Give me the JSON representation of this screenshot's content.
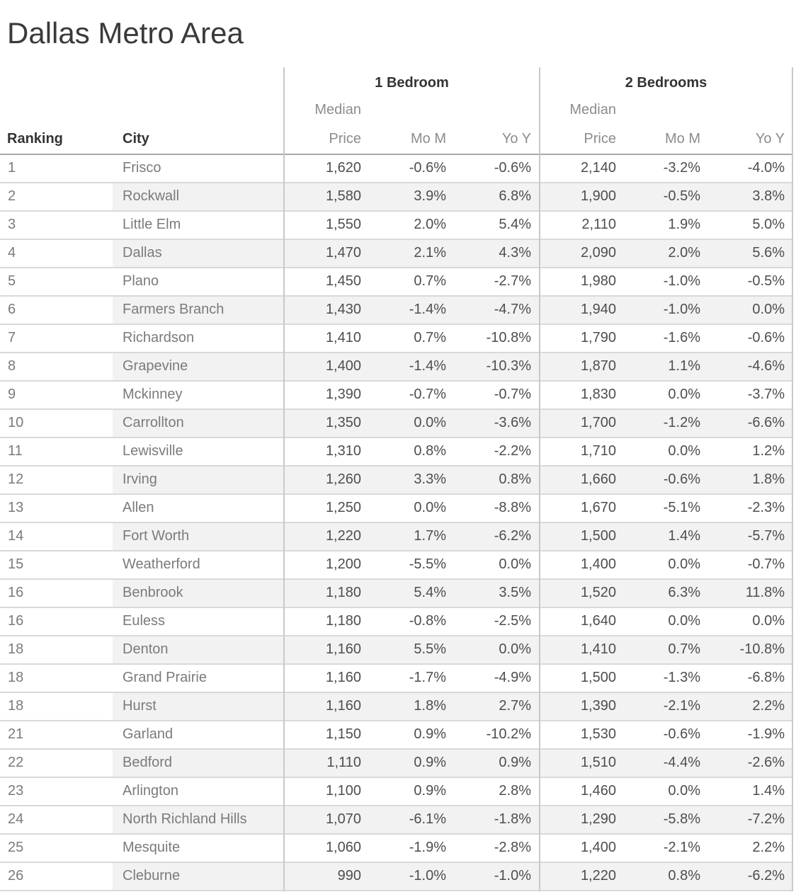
{
  "title": "Dallas Metro Area",
  "header": {
    "ranking": "Ranking",
    "city": "City",
    "group_1br": "1 Bedroom",
    "group_2br": "2 Bedrooms",
    "median_price": "Median Price",
    "mom": "Mo M",
    "yoy": "Yo Y"
  },
  "colors": {
    "title": "#3a3a3a",
    "header_dark": "#333333",
    "header_light": "#8c8c8c",
    "text_dark": "#4e4e4e",
    "text_light": "#7b7b7b",
    "band": "#f2f2f2",
    "row_line": "#d9d9d9",
    "header_line": "#a9a9a9",
    "divider": "#c9c9c9"
  },
  "chart_data": {
    "type": "table",
    "title": "Dallas Metro Area",
    "column_groups": [
      {
        "label": "1 Bedroom",
        "columns": [
          "Median Price",
          "Mo M",
          "Yo Y"
        ]
      },
      {
        "label": "2 Bedrooms",
        "columns": [
          "Median Price",
          "Mo M",
          "Yo Y"
        ]
      }
    ],
    "columns": [
      "Ranking",
      "City",
      "1BR Median Price",
      "1BR Mo M",
      "1BR Yo Y",
      "2BR Median Price",
      "2BR Mo M",
      "2BR Yo Y"
    ],
    "rows": [
      {
        "ranking": "1",
        "city": "Frisco",
        "br1_price": "1,620",
        "br1_mom": "-0.6%",
        "br1_yoy": "-0.6%",
        "br2_price": "2,140",
        "br2_mom": "-3.2%",
        "br2_yoy": "-4.0%"
      },
      {
        "ranking": "2",
        "city": "Rockwall",
        "br1_price": "1,580",
        "br1_mom": "3.9%",
        "br1_yoy": "6.8%",
        "br2_price": "1,900",
        "br2_mom": "-0.5%",
        "br2_yoy": "3.8%"
      },
      {
        "ranking": "3",
        "city": "Little Elm",
        "br1_price": "1,550",
        "br1_mom": "2.0%",
        "br1_yoy": "5.4%",
        "br2_price": "2,110",
        "br2_mom": "1.9%",
        "br2_yoy": "5.0%"
      },
      {
        "ranking": "4",
        "city": "Dallas",
        "br1_price": "1,470",
        "br1_mom": "2.1%",
        "br1_yoy": "4.3%",
        "br2_price": "2,090",
        "br2_mom": "2.0%",
        "br2_yoy": "5.6%"
      },
      {
        "ranking": "5",
        "city": "Plano",
        "br1_price": "1,450",
        "br1_mom": "0.7%",
        "br1_yoy": "-2.7%",
        "br2_price": "1,980",
        "br2_mom": "-1.0%",
        "br2_yoy": "-0.5%"
      },
      {
        "ranking": "6",
        "city": "Farmers Branch",
        "br1_price": "1,430",
        "br1_mom": "-1.4%",
        "br1_yoy": "-4.7%",
        "br2_price": "1,940",
        "br2_mom": "-1.0%",
        "br2_yoy": "0.0%"
      },
      {
        "ranking": "7",
        "city": "Richardson",
        "br1_price": "1,410",
        "br1_mom": "0.7%",
        "br1_yoy": "-10.8%",
        "br2_price": "1,790",
        "br2_mom": "-1.6%",
        "br2_yoy": "-0.6%"
      },
      {
        "ranking": "8",
        "city": "Grapevine",
        "br1_price": "1,400",
        "br1_mom": "-1.4%",
        "br1_yoy": "-10.3%",
        "br2_price": "1,870",
        "br2_mom": "1.1%",
        "br2_yoy": "-4.6%"
      },
      {
        "ranking": "9",
        "city": "Mckinney",
        "br1_price": "1,390",
        "br1_mom": "-0.7%",
        "br1_yoy": "-0.7%",
        "br2_price": "1,830",
        "br2_mom": "0.0%",
        "br2_yoy": "-3.7%"
      },
      {
        "ranking": "10",
        "city": "Carrollton",
        "br1_price": "1,350",
        "br1_mom": "0.0%",
        "br1_yoy": "-3.6%",
        "br2_price": "1,700",
        "br2_mom": "-1.2%",
        "br2_yoy": "-6.6%"
      },
      {
        "ranking": "11",
        "city": "Lewisville",
        "br1_price": "1,310",
        "br1_mom": "0.8%",
        "br1_yoy": "-2.2%",
        "br2_price": "1,710",
        "br2_mom": "0.0%",
        "br2_yoy": "1.2%"
      },
      {
        "ranking": "12",
        "city": "Irving",
        "br1_price": "1,260",
        "br1_mom": "3.3%",
        "br1_yoy": "0.8%",
        "br2_price": "1,660",
        "br2_mom": "-0.6%",
        "br2_yoy": "1.8%"
      },
      {
        "ranking": "13",
        "city": "Allen",
        "br1_price": "1,250",
        "br1_mom": "0.0%",
        "br1_yoy": "-8.8%",
        "br2_price": "1,670",
        "br2_mom": "-5.1%",
        "br2_yoy": "-2.3%"
      },
      {
        "ranking": "14",
        "city": "Fort Worth",
        "br1_price": "1,220",
        "br1_mom": "1.7%",
        "br1_yoy": "-6.2%",
        "br2_price": "1,500",
        "br2_mom": "1.4%",
        "br2_yoy": "-5.7%"
      },
      {
        "ranking": "15",
        "city": "Weatherford",
        "br1_price": "1,200",
        "br1_mom": "-5.5%",
        "br1_yoy": "0.0%",
        "br2_price": "1,400",
        "br2_mom": "0.0%",
        "br2_yoy": "-0.7%"
      },
      {
        "ranking": "16",
        "city": "Benbrook",
        "br1_price": "1,180",
        "br1_mom": "5.4%",
        "br1_yoy": "3.5%",
        "br2_price": "1,520",
        "br2_mom": "6.3%",
        "br2_yoy": "11.8%"
      },
      {
        "ranking": "16",
        "city": "Euless",
        "br1_price": "1,180",
        "br1_mom": "-0.8%",
        "br1_yoy": "-2.5%",
        "br2_price": "1,640",
        "br2_mom": "0.0%",
        "br2_yoy": "0.0%"
      },
      {
        "ranking": "18",
        "city": "Denton",
        "br1_price": "1,160",
        "br1_mom": "5.5%",
        "br1_yoy": "0.0%",
        "br2_price": "1,410",
        "br2_mom": "0.7%",
        "br2_yoy": "-10.8%"
      },
      {
        "ranking": "18",
        "city": "Grand Prairie",
        "br1_price": "1,160",
        "br1_mom": "-1.7%",
        "br1_yoy": "-4.9%",
        "br2_price": "1,500",
        "br2_mom": "-1.3%",
        "br2_yoy": "-6.8%"
      },
      {
        "ranking": "18",
        "city": "Hurst",
        "br1_price": "1,160",
        "br1_mom": "1.8%",
        "br1_yoy": "2.7%",
        "br2_price": "1,390",
        "br2_mom": "-2.1%",
        "br2_yoy": "2.2%"
      },
      {
        "ranking": "21",
        "city": "Garland",
        "br1_price": "1,150",
        "br1_mom": "0.9%",
        "br1_yoy": "-10.2%",
        "br2_price": "1,530",
        "br2_mom": "-0.6%",
        "br2_yoy": "-1.9%"
      },
      {
        "ranking": "22",
        "city": "Bedford",
        "br1_price": "1,110",
        "br1_mom": "0.9%",
        "br1_yoy": "0.9%",
        "br2_price": "1,510",
        "br2_mom": "-4.4%",
        "br2_yoy": "-2.6%"
      },
      {
        "ranking": "23",
        "city": "Arlington",
        "br1_price": "1,100",
        "br1_mom": "0.9%",
        "br1_yoy": "2.8%",
        "br2_price": "1,460",
        "br2_mom": "0.0%",
        "br2_yoy": "1.4%"
      },
      {
        "ranking": "24",
        "city": "North Richland Hills",
        "br1_price": "1,070",
        "br1_mom": "-6.1%",
        "br1_yoy": "-1.8%",
        "br2_price": "1,290",
        "br2_mom": "-5.8%",
        "br2_yoy": "-7.2%"
      },
      {
        "ranking": "25",
        "city": "Mesquite",
        "br1_price": "1,060",
        "br1_mom": "-1.9%",
        "br1_yoy": "-2.8%",
        "br2_price": "1,400",
        "br2_mom": "-2.1%",
        "br2_yoy": "2.2%"
      },
      {
        "ranking": "26",
        "city": "Cleburne",
        "br1_price": "990",
        "br1_mom": "-1.0%",
        "br1_yoy": "-1.0%",
        "br2_price": "1,220",
        "br2_mom": "0.8%",
        "br2_yoy": "-6.2%"
      }
    ]
  }
}
